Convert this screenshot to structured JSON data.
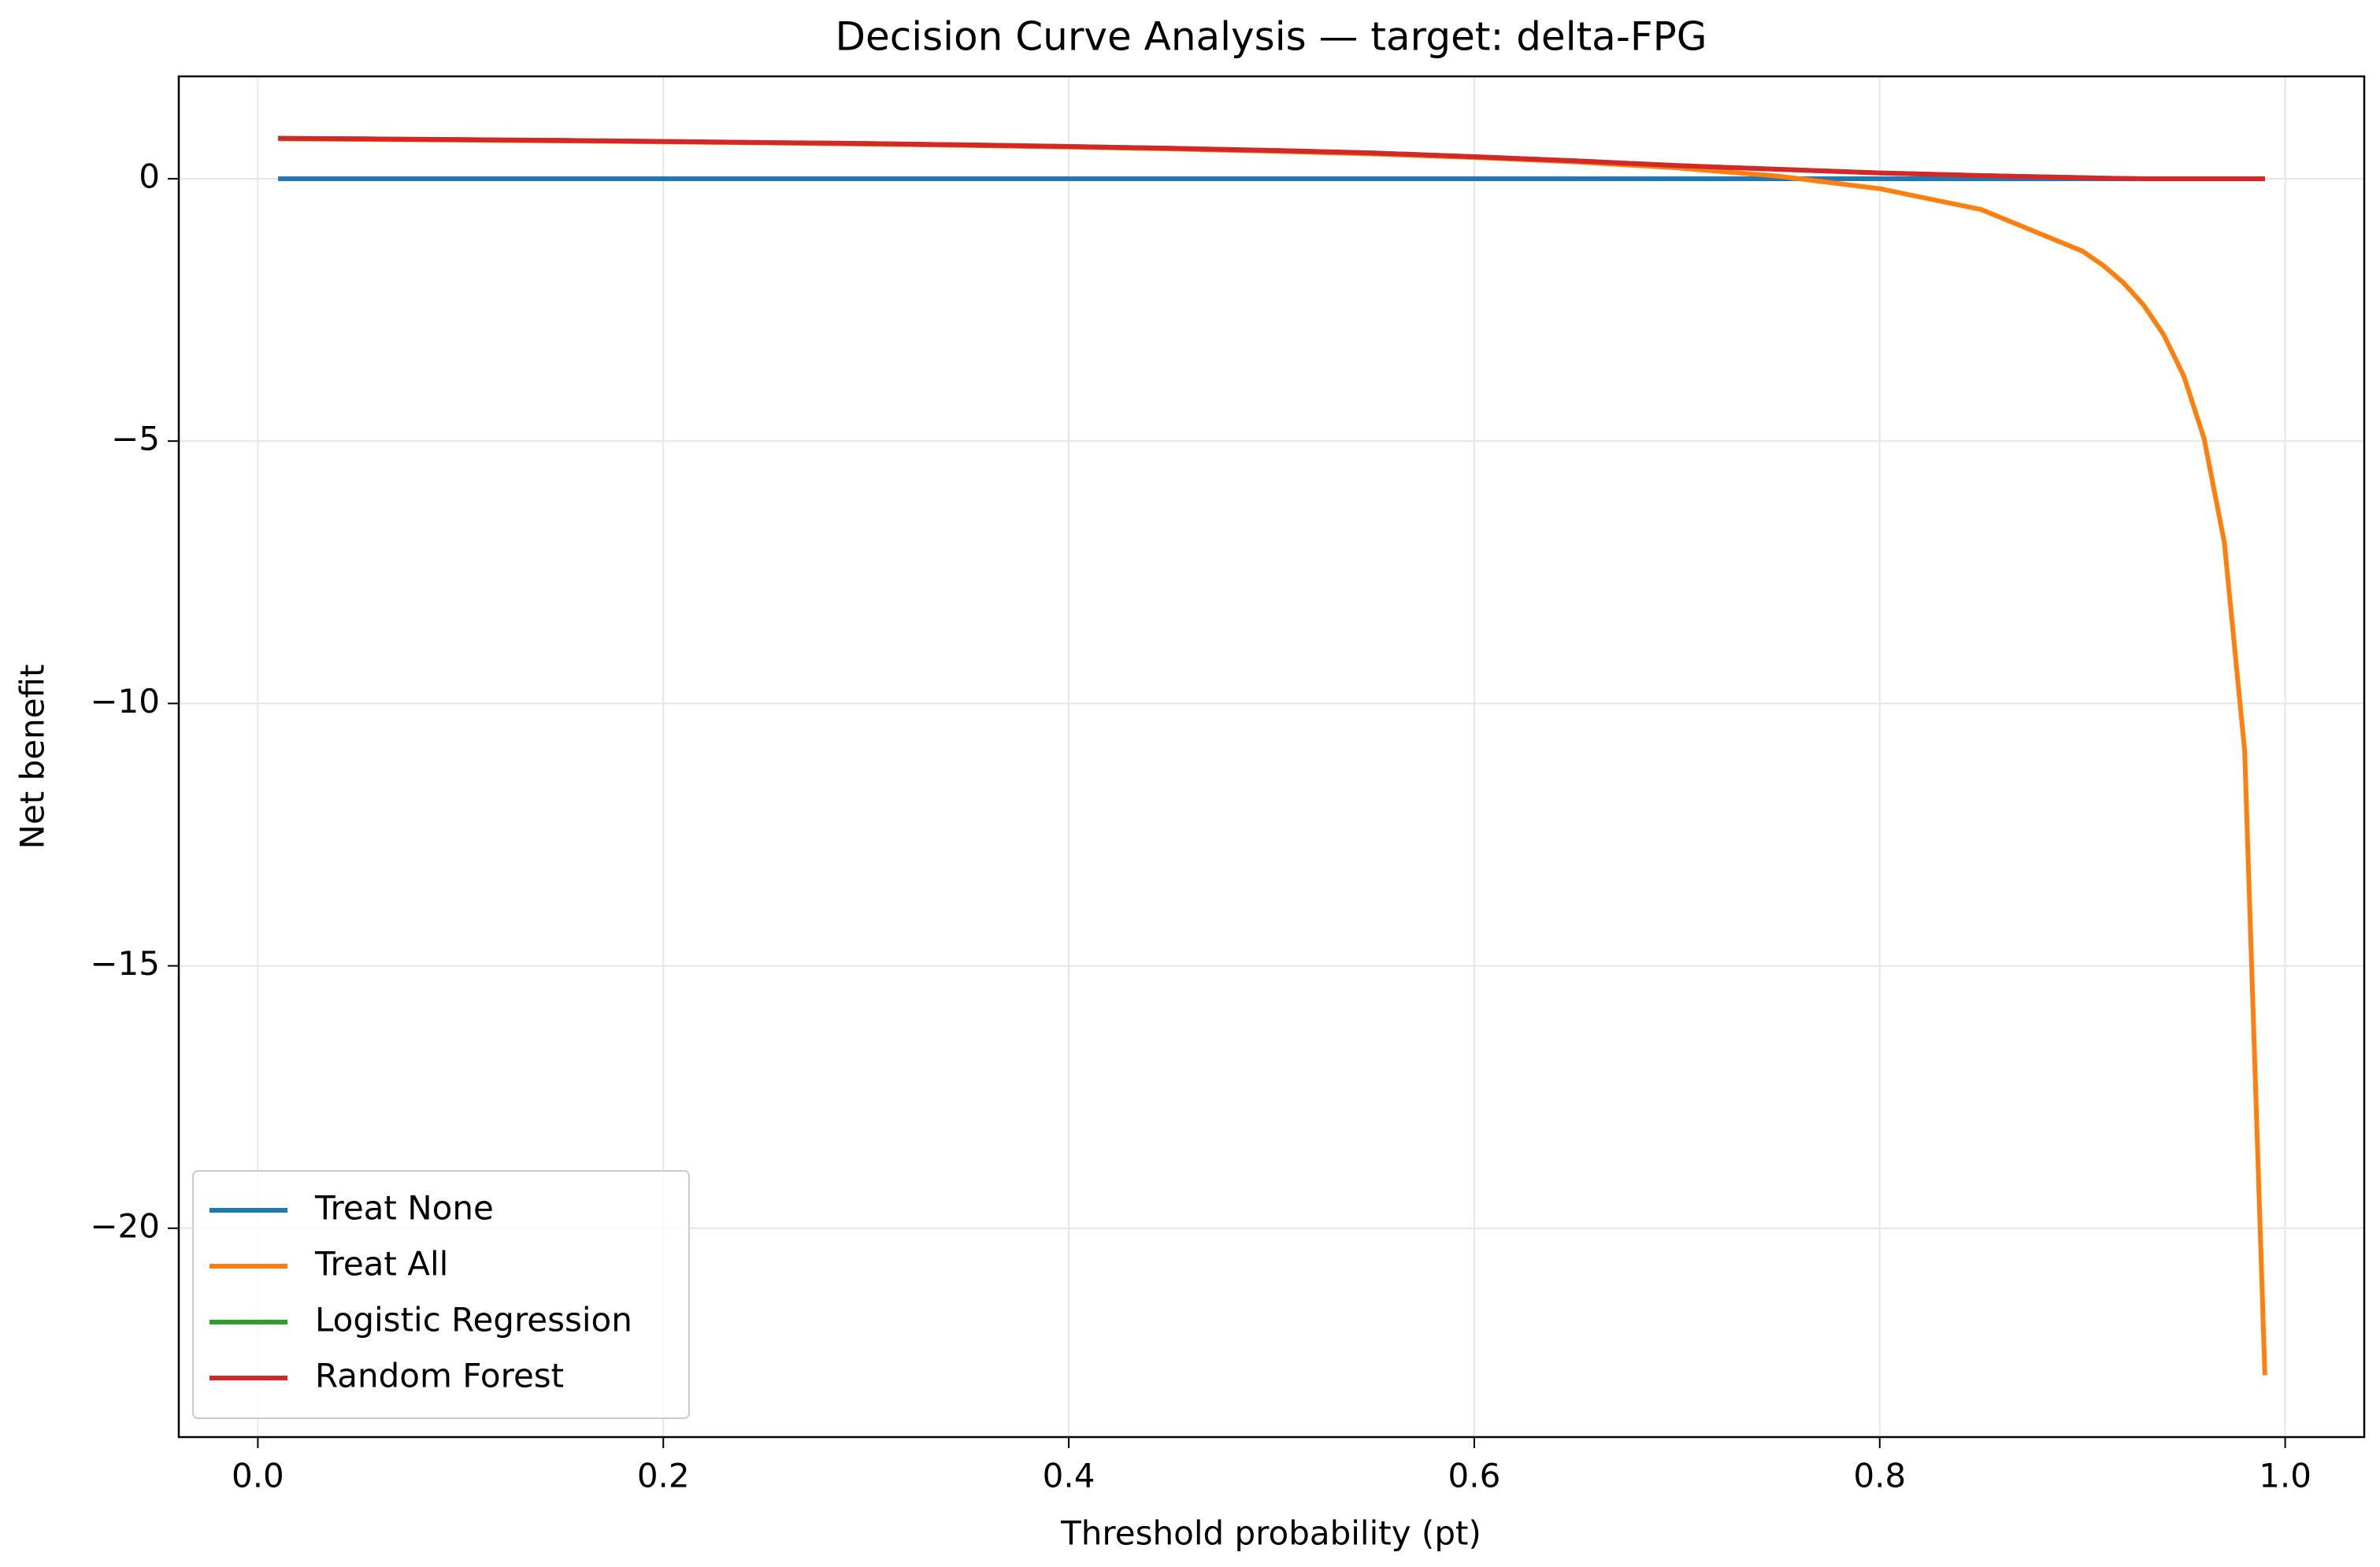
{
  "chart_data": {
    "type": "line",
    "title": "Decision Curve Analysis — target: delta-FPG",
    "xlabel": "Threshold probability (pt)",
    "ylabel": "Net benefit",
    "x": [
      0.01,
      0.05,
      0.1,
      0.15,
      0.2,
      0.25,
      0.3,
      0.35,
      0.4,
      0.45,
      0.5,
      0.55,
      0.6,
      0.65,
      0.7,
      0.75,
      0.8,
      0.85,
      0.9,
      0.91,
      0.92,
      0.93,
      0.94,
      0.95,
      0.96,
      0.97,
      0.98,
      0.99
    ],
    "series": [
      {
        "name": "Treat None",
        "color": "#1f77b4",
        "values": [
          0,
          0,
          0,
          0,
          0,
          0,
          0,
          0,
          0,
          0,
          0,
          0,
          0,
          0,
          0,
          0,
          0,
          0,
          0,
          0,
          0,
          0,
          0,
          0,
          0,
          0,
          0,
          0
        ]
      },
      {
        "name": "Treat All",
        "color": "#ff7f0e",
        "values": [
          0.76,
          0.749,
          0.736,
          0.72,
          0.703,
          0.683,
          0.66,
          0.634,
          0.603,
          0.567,
          0.524,
          0.471,
          0.405,
          0.32,
          0.207,
          0.048,
          -0.19,
          -0.587,
          -1.38,
          -1.645,
          -1.975,
          -2.4,
          -2.967,
          -3.76,
          -4.95,
          -6.933,
          -10.9,
          -22.8
        ]
      },
      {
        "name": "Logistic Regression",
        "color": "#2ca02c",
        "values": [
          0.77,
          0.76,
          0.745,
          0.73,
          0.71,
          0.69,
          0.67,
          0.645,
          0.615,
          0.58,
          0.54,
          0.49,
          0.42,
          0.34,
          0.25,
          0.18,
          0.11,
          0.06,
          0.02,
          0.01,
          0.005,
          0,
          0,
          0,
          0,
          0,
          0,
          0
        ]
      },
      {
        "name": "Random Forest",
        "color": "#d62728",
        "values": [
          0.77,
          0.76,
          0.745,
          0.73,
          0.71,
          0.69,
          0.67,
          0.645,
          0.615,
          0.58,
          0.54,
          0.49,
          0.42,
          0.34,
          0.25,
          0.18,
          0.11,
          0.06,
          0.02,
          0.01,
          0.005,
          0,
          0,
          0,
          0,
          0,
          0,
          0
        ]
      }
    ],
    "xlim": [
      -0.039,
      1.039
    ],
    "xticks": [
      {
        "value": 0,
        "label": "0.0"
      },
      0.2,
      0.4,
      0.6,
      0.8,
      {
        "value": 1,
        "label": "1.0"
      }
    ],
    "ylim": [
      -23.98,
      1.95
    ],
    "yticks": [
      {
        "value": -20,
        "label": "−20"
      },
      {
        "value": -15,
        "label": "−15"
      },
      {
        "value": -10,
        "label": "−10"
      },
      {
        "value": -5,
        "label": "−5"
      },
      0
    ],
    "grid": true,
    "legend": "lower left"
  }
}
